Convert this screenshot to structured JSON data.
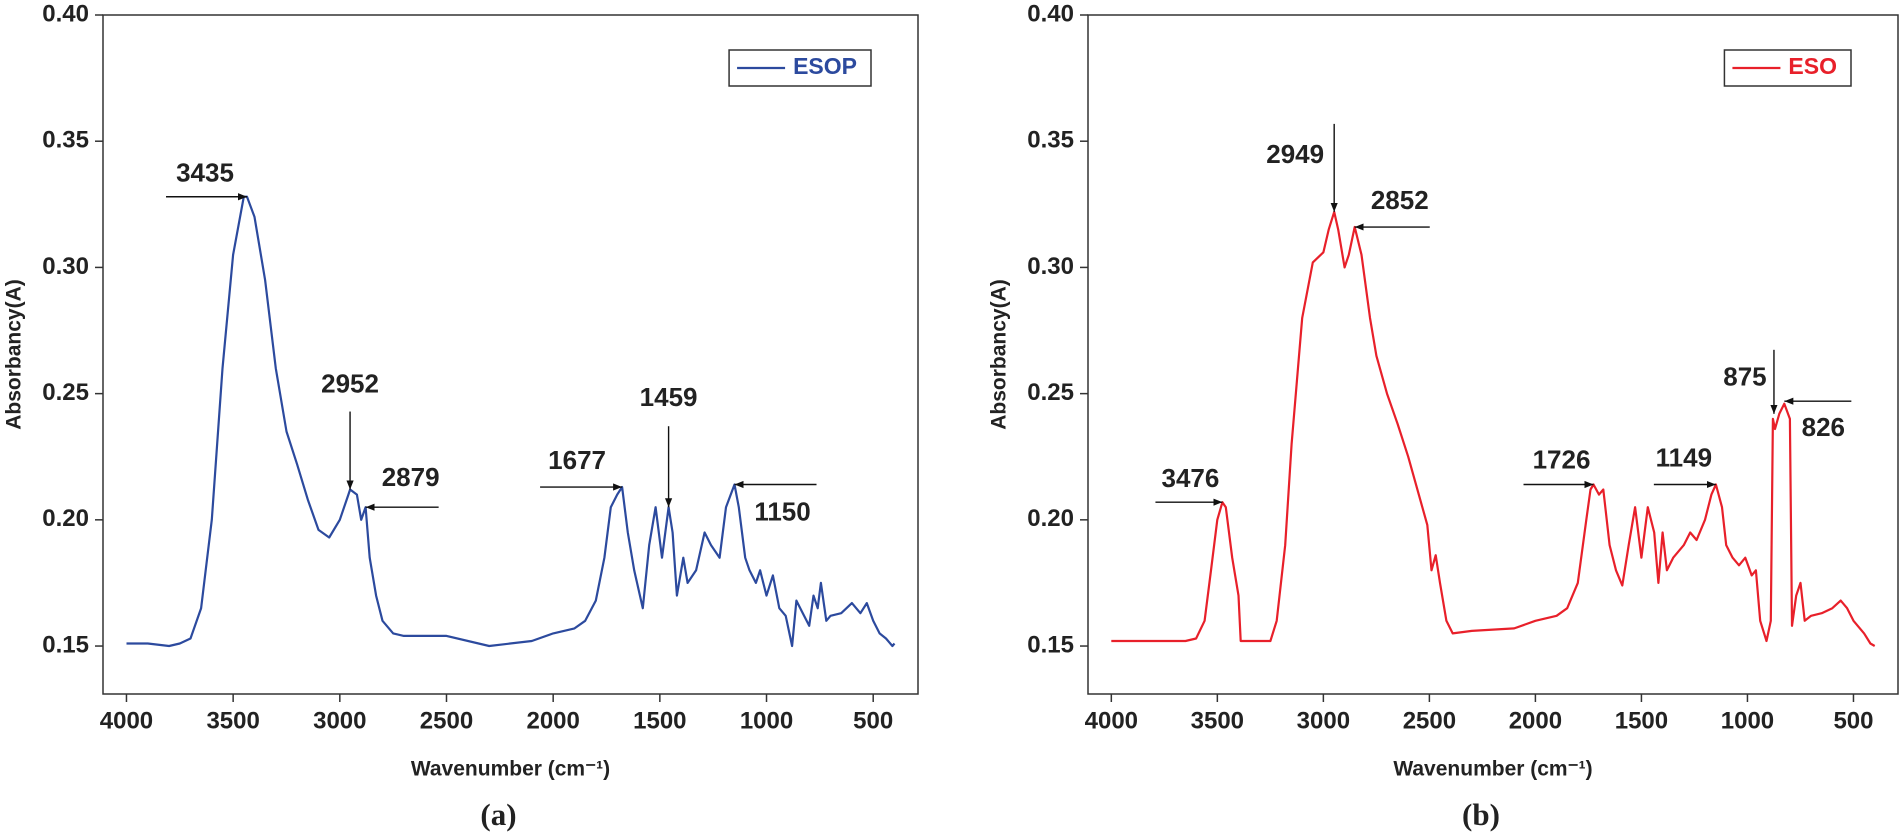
{
  "chart_data": [
    {
      "type": "line",
      "caption": "(a)",
      "xlabel": "Wavenumber (cm⁻¹)",
      "ylabel": "Absorbancy(A)",
      "xlim": [
        4110,
        290
      ],
      "ylim": [
        0.131,
        0.4
      ],
      "xticks": [
        4000,
        3500,
        3000,
        2500,
        2000,
        1500,
        1000,
        500
      ],
      "yticks": [
        0.15,
        {
          "value": 0.2,
          "label": "0.20"
        },
        0.25,
        {
          "value": 0.3,
          "label": "0.30"
        },
        0.35,
        {
          "value": 0.4,
          "label": "0.40"
        }
      ],
      "legend": "upper right",
      "grid": false,
      "x": [
        4000,
        3900,
        3800,
        3750,
        3700,
        3650,
        3600,
        3550,
        3500,
        3450,
        3435,
        3400,
        3350,
        3300,
        3250,
        3200,
        3150,
        3100,
        3050,
        3000,
        2960,
        2952,
        2920,
        2900,
        2879,
        2860,
        2830,
        2800,
        2750,
        2700,
        2500,
        2300,
        2100,
        2000,
        1900,
        1850,
        1800,
        1760,
        1730,
        1700,
        1677,
        1650,
        1620,
        1580,
        1550,
        1520,
        1490,
        1459,
        1440,
        1420,
        1390,
        1370,
        1330,
        1290,
        1260,
        1220,
        1190,
        1150,
        1130,
        1100,
        1080,
        1050,
        1030,
        1000,
        970,
        940,
        910,
        880,
        860,
        830,
        800,
        780,
        760,
        745,
        720,
        700,
        650,
        600,
        560,
        530,
        500,
        470,
        440,
        410,
        400
      ],
      "series": [
        {
          "name": "ESOP",
          "color": "#2c4a9e",
          "values": [
            0.151,
            0.151,
            0.15,
            0.151,
            0.153,
            0.165,
            0.2,
            0.26,
            0.305,
            0.328,
            0.328,
            0.32,
            0.295,
            0.26,
            0.235,
            0.222,
            0.208,
            0.196,
            0.193,
            0.2,
            0.21,
            0.212,
            0.21,
            0.2,
            0.205,
            0.185,
            0.17,
            0.16,
            0.155,
            0.154,
            0.154,
            0.15,
            0.152,
            0.155,
            0.157,
            0.16,
            0.168,
            0.185,
            0.205,
            0.21,
            0.213,
            0.195,
            0.18,
            0.165,
            0.19,
            0.205,
            0.185,
            0.205,
            0.195,
            0.17,
            0.185,
            0.175,
            0.18,
            0.195,
            0.19,
            0.185,
            0.205,
            0.214,
            0.205,
            0.185,
            0.18,
            0.175,
            0.18,
            0.17,
            0.178,
            0.165,
            0.162,
            0.15,
            0.168,
            0.163,
            0.158,
            0.17,
            0.165,
            0.175,
            0.16,
            0.162,
            0.163,
            0.167,
            0.163,
            0.167,
            0.16,
            0.155,
            0.153,
            0.15,
            0.151
          ]
        }
      ],
      "annotations": [
        {
          "label": "3435",
          "x": 3435,
          "y": 0.328
        },
        {
          "label": "2952",
          "x": 2952,
          "y": 0.212
        },
        {
          "label": "2879",
          "x": 2879,
          "y": 0.205
        },
        {
          "label": "1677",
          "x": 1677,
          "y": 0.213
        },
        {
          "label": "1459",
          "x": 1459,
          "y": 0.205
        },
        {
          "label": "1150",
          "x": 1150,
          "y": 0.214
        }
      ]
    },
    {
      "type": "line",
      "caption": "(b)",
      "xlabel": "Wavenumber (cm⁻¹)",
      "ylabel": "Absorbancy(A)",
      "xlim": [
        4110,
        290
      ],
      "ylim": [
        0.131,
        0.4
      ],
      "xticks": [
        4000,
        3500,
        3000,
        2500,
        2000,
        1500,
        1000,
        500
      ],
      "yticks": [
        0.15,
        {
          "value": 0.2,
          "label": "0.20"
        },
        0.25,
        {
          "value": 0.3,
          "label": "0.30"
        },
        0.35,
        {
          "value": 0.4,
          "label": "0.40"
        }
      ],
      "legend": "upper right",
      "grid": false,
      "x": [
        4000,
        3800,
        3650,
        3600,
        3560,
        3530,
        3500,
        3476,
        3460,
        3430,
        3400,
        3390,
        3300,
        3250,
        3220,
        3180,
        3150,
        3100,
        3050,
        3000,
        2975,
        2949,
        2930,
        2900,
        2880,
        2852,
        2820,
        2780,
        2750,
        2700,
        2650,
        2600,
        2550,
        2510,
        2490,
        2470,
        2450,
        2420,
        2390,
        2300,
        2100,
        2000,
        1900,
        1850,
        1800,
        1760,
        1740,
        1726,
        1700,
        1680,
        1650,
        1620,
        1590,
        1560,
        1530,
        1500,
        1470,
        1440,
        1420,
        1400,
        1380,
        1350,
        1300,
        1270,
        1240,
        1200,
        1170,
        1149,
        1120,
        1100,
        1070,
        1040,
        1010,
        980,
        960,
        940,
        910,
        890,
        880,
        870,
        850,
        826,
        800,
        790,
        770,
        750,
        730,
        700,
        650,
        600,
        560,
        530,
        500,
        450,
        420,
        400
      ],
      "series": [
        {
          "name": "ESO",
          "color": "#e8202a",
          "values": [
            0.152,
            0.152,
            0.152,
            0.153,
            0.16,
            0.18,
            0.2,
            0.207,
            0.205,
            0.185,
            0.17,
            0.152,
            0.152,
            0.152,
            0.16,
            0.19,
            0.23,
            0.28,
            0.302,
            0.306,
            0.315,
            0.322,
            0.315,
            0.3,
            0.305,
            0.316,
            0.305,
            0.28,
            0.265,
            0.25,
            0.238,
            0.225,
            0.21,
            0.198,
            0.18,
            0.186,
            0.175,
            0.16,
            0.155,
            0.156,
            0.157,
            0.16,
            0.162,
            0.165,
            0.175,
            0.2,
            0.212,
            0.214,
            0.21,
            0.212,
            0.19,
            0.18,
            0.174,
            0.19,
            0.205,
            0.185,
            0.205,
            0.195,
            0.175,
            0.195,
            0.18,
            0.185,
            0.19,
            0.195,
            0.192,
            0.2,
            0.21,
            0.214,
            0.205,
            0.19,
            0.185,
            0.182,
            0.185,
            0.178,
            0.18,
            0.16,
            0.152,
            0.16,
            0.24,
            0.236,
            0.242,
            0.246,
            0.24,
            0.158,
            0.17,
            0.175,
            0.16,
            0.162,
            0.163,
            0.165,
            0.168,
            0.165,
            0.16,
            0.155,
            0.151,
            0.15
          ]
        }
      ],
      "annotations": [
        {
          "label": "3476",
          "x": 3476,
          "y": 0.207
        },
        {
          "label": "2949",
          "x": 2949,
          "y": 0.322
        },
        {
          "label": "2852",
          "x": 2852,
          "y": 0.316
        },
        {
          "label": "1726",
          "x": 1726,
          "y": 0.214
        },
        {
          "label": "1149",
          "x": 1149,
          "y": 0.214
        },
        {
          "label": "875",
          "x": 875,
          "y": 0.242
        },
        {
          "label": "826",
          "x": 826,
          "y": 0.247
        }
      ]
    }
  ]
}
